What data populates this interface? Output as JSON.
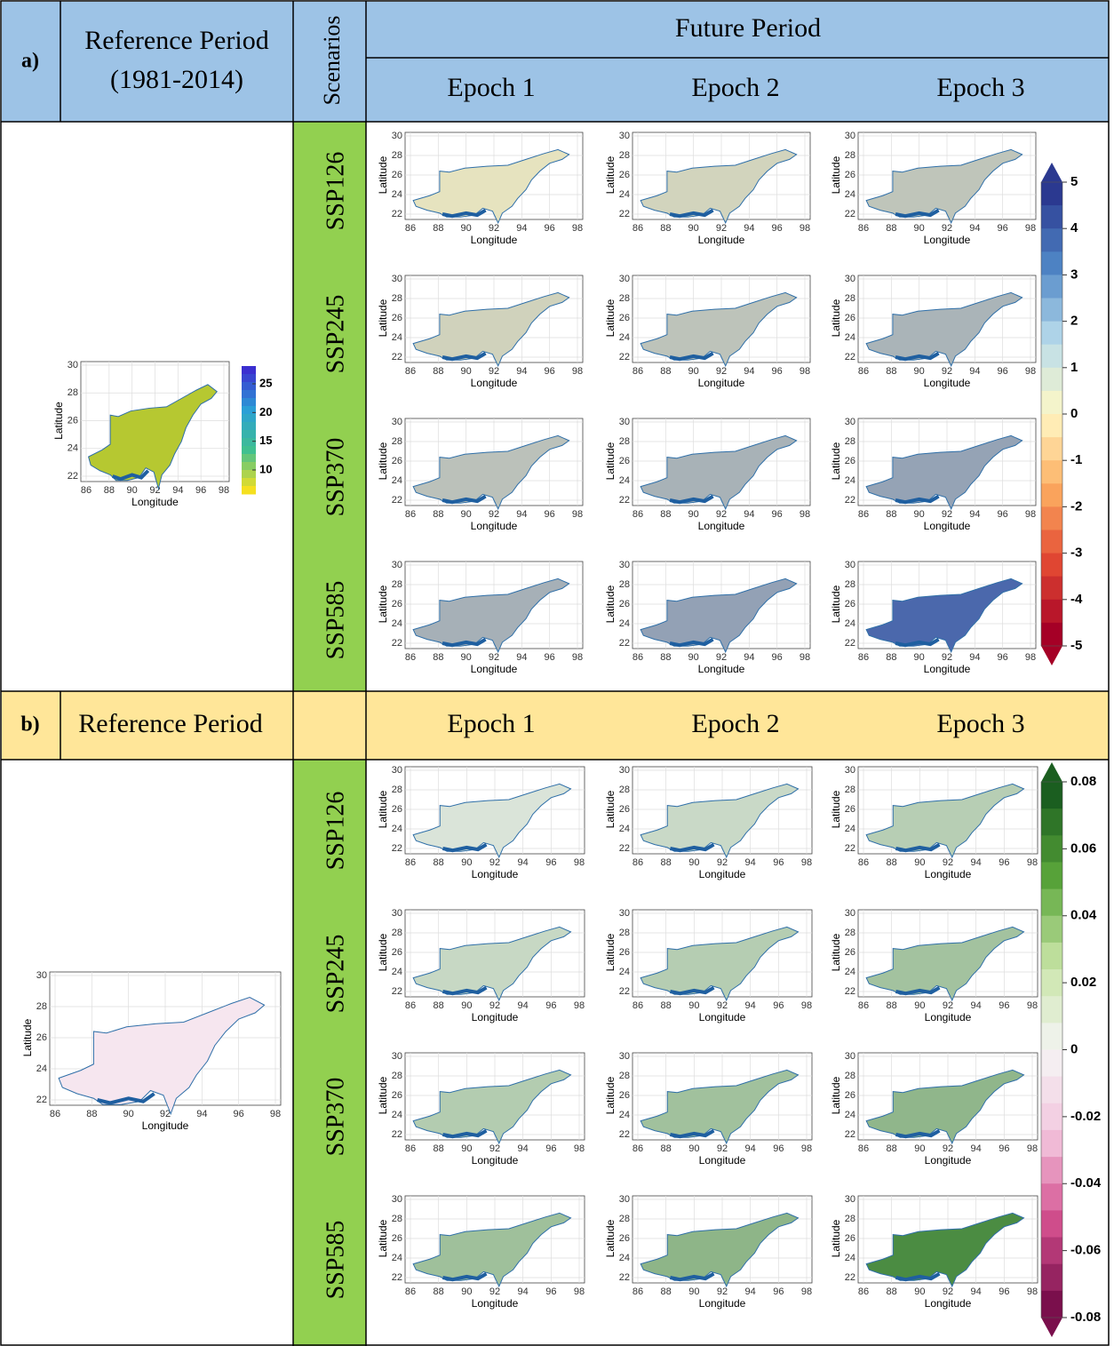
{
  "panels": [
    {
      "label": "a)",
      "reference_header": "Reference Period",
      "reference_period": "(1981-2014)",
      "scenarios_header": "Scenarios",
      "future_header": "Future Period",
      "epochs": [
        "Epoch 1",
        "Epoch 2",
        "Epoch 3"
      ],
      "scenarios": [
        "SSP126",
        "SSP245",
        "SSP370",
        "SSP585"
      ],
      "colorbar_ticks": [
        5,
        4,
        3,
        2,
        1,
        0,
        -1,
        -2,
        -3,
        -4,
        -5
      ],
      "reference_colorbar_ticks": [
        25,
        20,
        15,
        10
      ]
    },
    {
      "label": "b)",
      "reference_header": "Reference Period",
      "epochs": [
        "Epoch 1",
        "Epoch 2",
        "Epoch 3"
      ],
      "scenarios": [
        "SSP126",
        "SSP245",
        "SSP370",
        "SSP585"
      ],
      "colorbar_ticks": [
        0.08,
        0.06,
        0.04,
        0.02,
        0,
        -0.02,
        -0.04,
        -0.06,
        -0.08
      ]
    }
  ],
  "map_axes": {
    "xticks": [
      86,
      88,
      90,
      92,
      94,
      96,
      98
    ],
    "yticks": [
      30,
      28,
      26,
      24,
      22
    ],
    "xlabel": "Longitude",
    "ylabel": "Latitude"
  }
}
